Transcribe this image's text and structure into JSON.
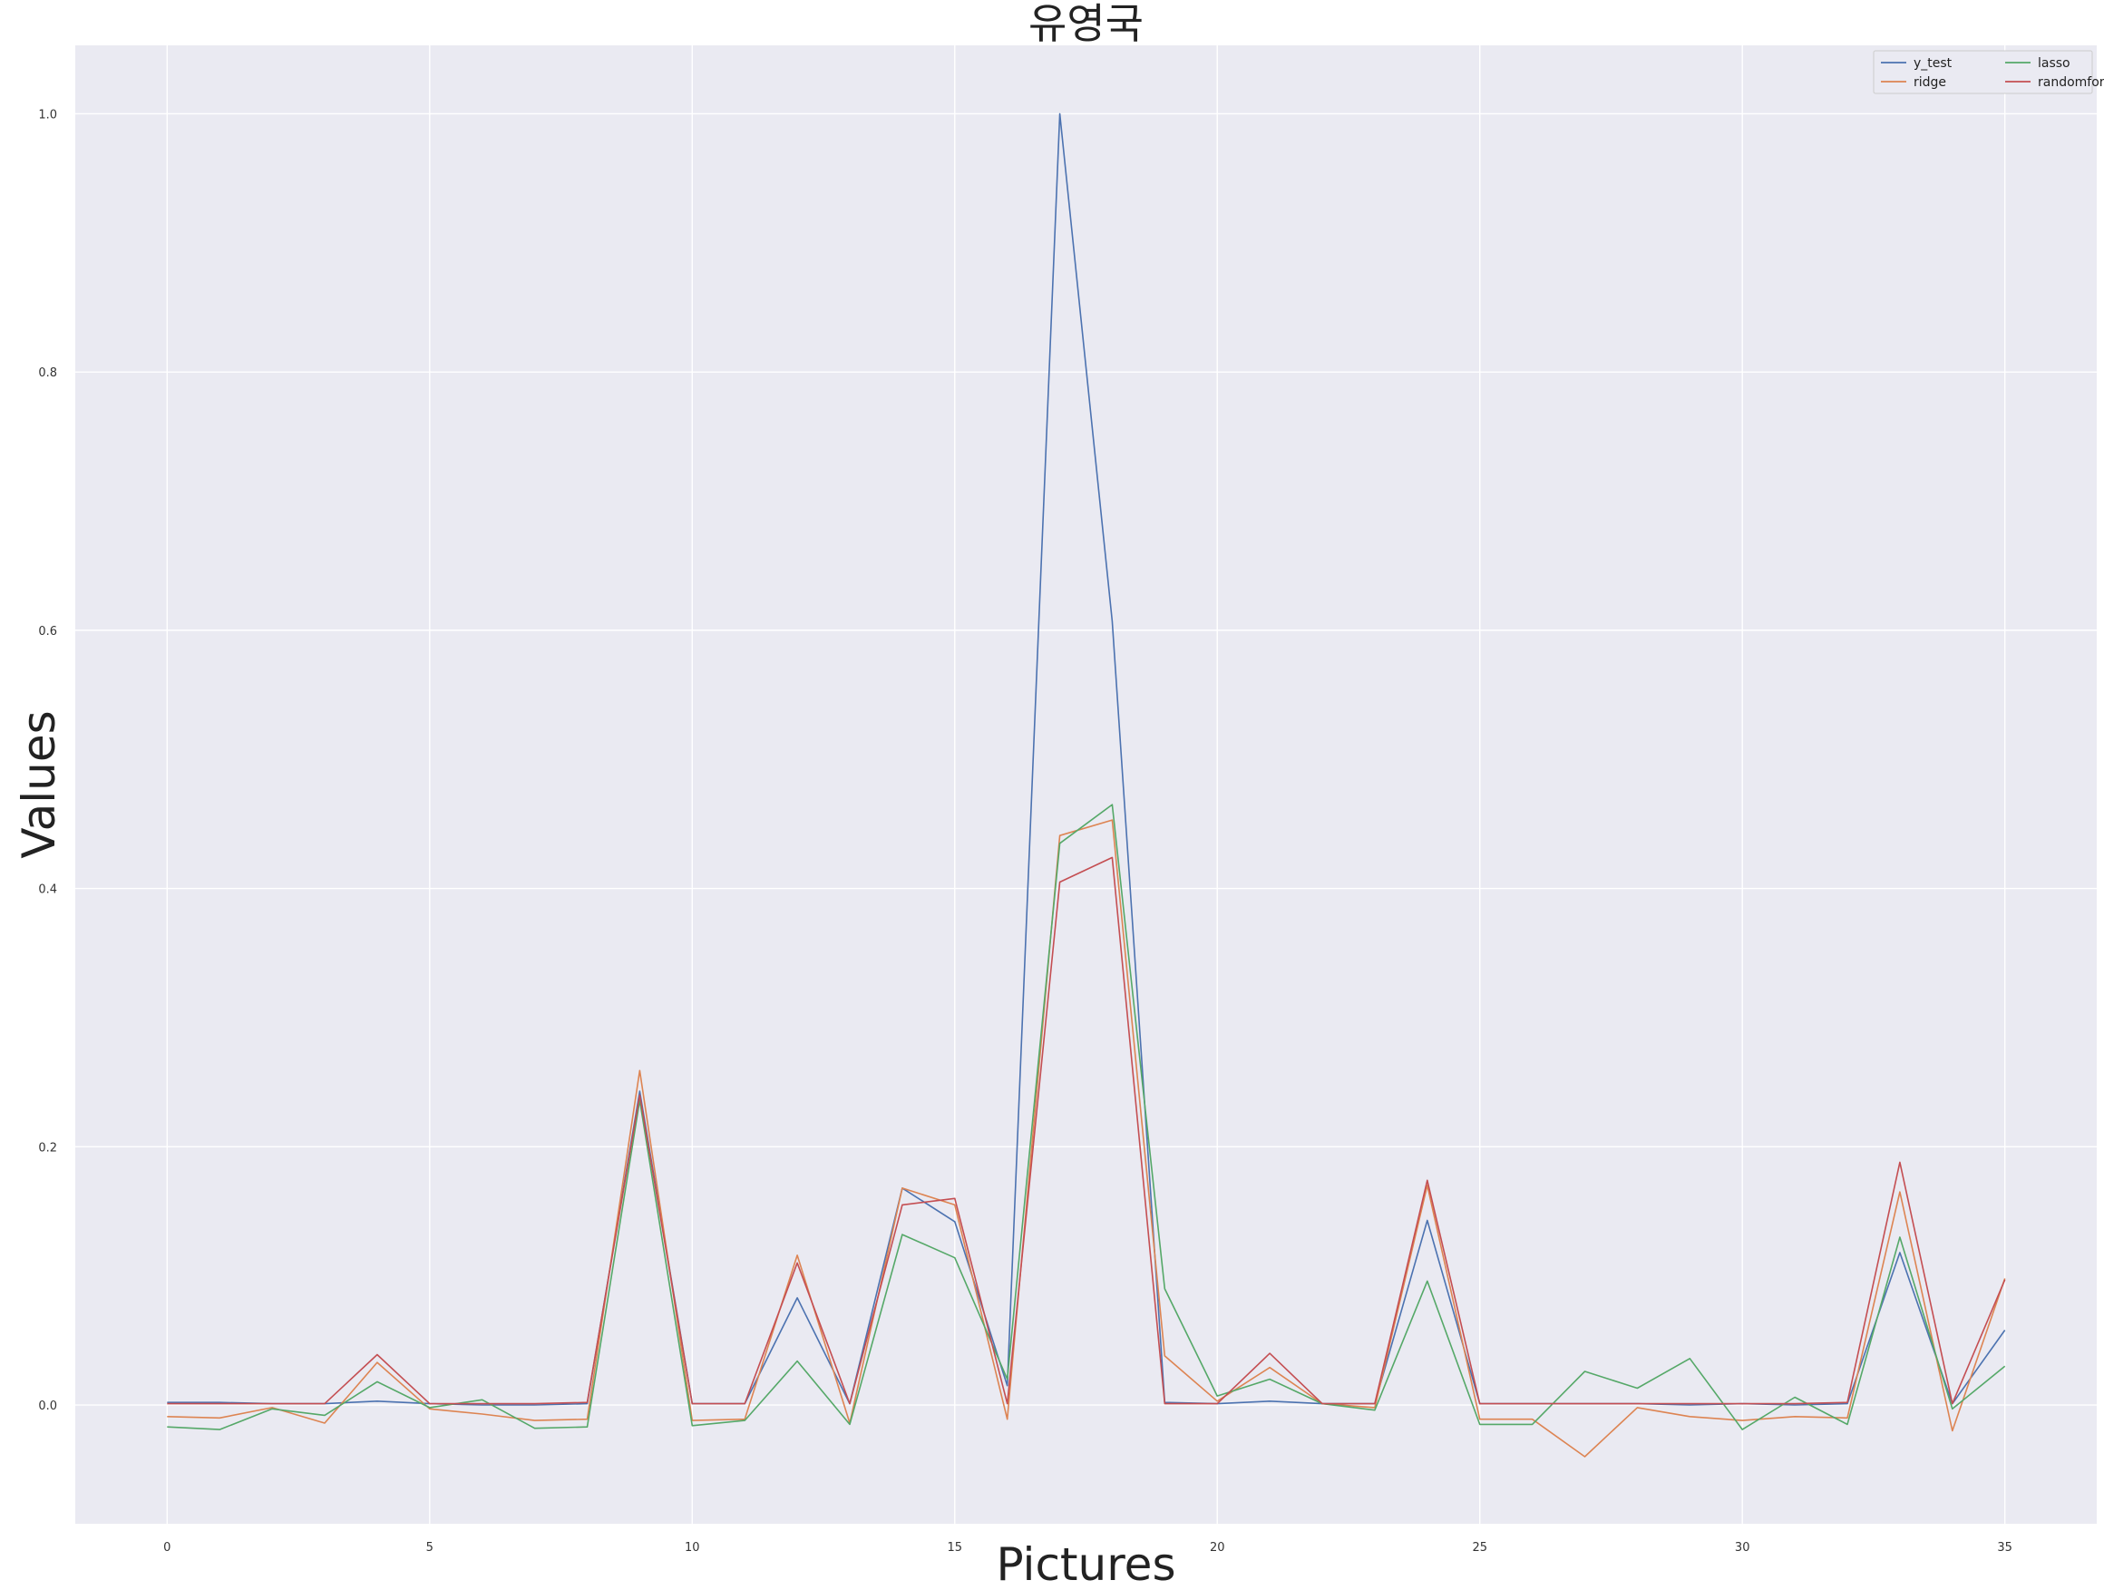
{
  "chart_data": {
    "type": "line",
    "title": "유영국",
    "xlabel": "Pictures",
    "ylabel": "Values",
    "xlim": [
      -1.75,
      36.75
    ],
    "ylim": [
      -0.092,
      1.053
    ],
    "x_ticks": [
      0,
      5,
      10,
      15,
      20,
      25,
      30,
      35
    ],
    "x_tick_labels": [
      "0",
      "5",
      "10",
      "15",
      "20",
      "25",
      "30",
      "35"
    ],
    "y_ticks": [
      0.0,
      0.2,
      0.4,
      0.6,
      0.8,
      1.0
    ],
    "y_tick_labels": [
      "0.0",
      "0.2",
      "0.4",
      "0.6",
      "0.8",
      "1.0"
    ],
    "grid": true,
    "legend": {
      "position": "top-right",
      "columns": 2
    },
    "x": [
      0,
      1,
      2,
      3,
      4,
      5,
      6,
      7,
      8,
      9,
      10,
      11,
      12,
      13,
      14,
      15,
      16,
      17,
      18,
      19,
      20,
      21,
      22,
      23,
      24,
      25,
      26,
      27,
      28,
      29,
      30,
      31,
      32,
      33,
      34,
      35
    ],
    "series": [
      {
        "name": "y_test",
        "color": "#4c72b0",
        "values": [
          0.002,
          0.002,
          0.001,
          0.001,
          0.003,
          0.001,
          0.0,
          0.0,
          0.001,
          0.243,
          0.001,
          0.001,
          0.083,
          0.001,
          0.168,
          0.142,
          0.015,
          1.0,
          0.607,
          0.002,
          0.001,
          0.003,
          0.001,
          0.001,
          0.143,
          0.001,
          0.001,
          0.001,
          0.001,
          0.0,
          0.001,
          0.0,
          0.001,
          0.118,
          0.001,
          0.058
        ]
      },
      {
        "name": "ridge",
        "color": "#dd8452",
        "values": [
          -0.009,
          -0.01,
          -0.002,
          -0.014,
          0.033,
          -0.003,
          -0.007,
          -0.012,
          -0.011,
          0.259,
          -0.012,
          -0.011,
          0.116,
          -0.014,
          0.168,
          0.155,
          -0.011,
          0.441,
          0.453,
          0.038,
          0.003,
          0.029,
          0.001,
          -0.002,
          0.17,
          -0.011,
          -0.011,
          -0.04,
          -0.002,
          -0.009,
          -0.012,
          -0.009,
          -0.01,
          0.165,
          -0.02,
          0.098
        ]
      },
      {
        "name": "lasso",
        "color": "#55a868",
        "values": [
          -0.017,
          -0.019,
          -0.003,
          -0.008,
          0.018,
          -0.002,
          0.004,
          -0.018,
          -0.017,
          0.236,
          -0.016,
          -0.012,
          0.034,
          -0.015,
          0.132,
          0.114,
          0.02,
          0.435,
          0.465,
          0.09,
          0.007,
          0.02,
          0.001,
          -0.004,
          0.096,
          -0.015,
          -0.015,
          0.026,
          0.013,
          0.036,
          -0.019,
          0.006,
          -0.015,
          0.13,
          -0.003,
          0.03
        ]
      },
      {
        "name": "randomforest",
        "color": "#c44e52",
        "values": [
          0.001,
          0.001,
          0.001,
          0.001,
          0.039,
          0.001,
          0.001,
          0.001,
          0.002,
          0.24,
          0.001,
          0.001,
          0.11,
          0.001,
          0.155,
          0.16,
          0.001,
          0.405,
          0.424,
          0.001,
          0.001,
          0.04,
          0.001,
          0.001,
          0.174,
          0.001,
          0.001,
          0.001,
          0.001,
          0.001,
          0.001,
          0.001,
          0.002,
          0.188,
          0.001,
          0.097
        ]
      }
    ]
  }
}
